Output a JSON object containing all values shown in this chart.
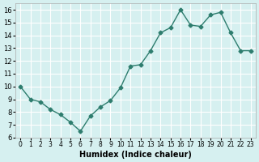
{
  "x": [
    0,
    1,
    2,
    3,
    4,
    5,
    6,
    7,
    8,
    9,
    10,
    11,
    12,
    13,
    14,
    15,
    16,
    17,
    18,
    19,
    20,
    21,
    22,
    23
  ],
  "y": [
    10.0,
    9.0,
    8.8,
    8.2,
    7.8,
    7.2,
    6.5,
    7.7,
    8.4,
    8.9,
    9.9,
    11.6,
    11.7,
    12.8,
    14.2,
    14.6,
    16.0,
    14.8,
    14.7,
    15.6,
    15.8,
    14.2,
    12.8,
    12.8
  ],
  "xlabel": "Humidex (Indice chaleur)",
  "ylabel": "",
  "title": "",
  "line_color": "#2e7d6e",
  "marker_color": "#2e7d6e",
  "bg_color": "#d6f0f0",
  "grid_color": "#ffffff",
  "axis_bg": "#d6f0f0",
  "xlim": [
    -0.5,
    23.5
  ],
  "ylim": [
    6,
    16.5
  ],
  "yticks": [
    6,
    7,
    8,
    9,
    10,
    11,
    12,
    13,
    14,
    15,
    16
  ],
  "xtick_labels": [
    "0",
    "1",
    "2",
    "3",
    "4",
    "5",
    "6",
    "7",
    "8",
    "9",
    "10",
    "11",
    "12",
    "13",
    "14",
    "15",
    "16",
    "17",
    "18",
    "19",
    "20",
    "21",
    "22",
    "23"
  ]
}
